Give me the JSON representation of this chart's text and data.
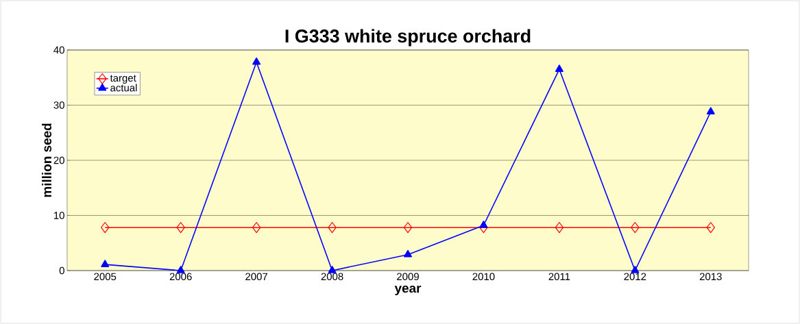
{
  "chart_data": {
    "type": "line",
    "title": "I G333 white spruce orchard",
    "xlabel": "year",
    "ylabel": "million seed",
    "categories": [
      "2005",
      "2006",
      "2007",
      "2008",
      "2009",
      "2010",
      "2011",
      "2012",
      "2013"
    ],
    "series": [
      {
        "name": "target",
        "color": "#ff0000",
        "marker": "diamond",
        "values": [
          7.8,
          7.8,
          7.8,
          7.8,
          7.8,
          7.8,
          7.8,
          7.8,
          7.8
        ]
      },
      {
        "name": "actual",
        "color": "#0000ff",
        "marker": "triangle",
        "values": [
          1.1,
          0,
          37.8,
          0,
          2.9,
          8.2,
          36.5,
          0,
          28.8
        ]
      }
    ],
    "ylim": [
      0,
      40
    ],
    "yticks": [
      0,
      10,
      20,
      30,
      40
    ],
    "grid": "y",
    "legend": "top left"
  }
}
